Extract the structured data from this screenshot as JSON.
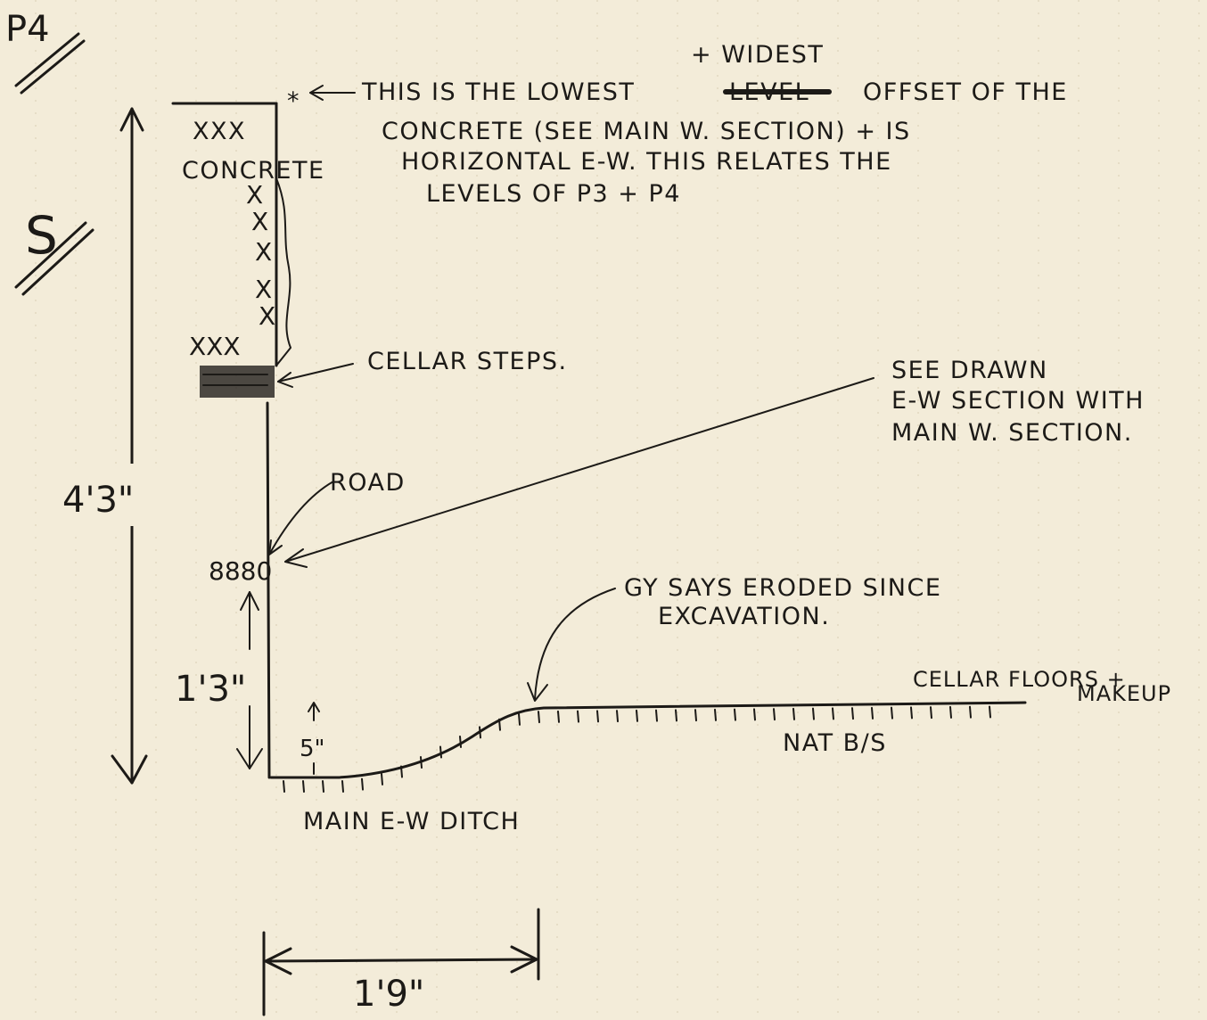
{
  "page_label": "P4",
  "direction_label": "S",
  "note_top": {
    "insert": "+ WIDEST",
    "line1": "THIS IS THE LOWEST",
    "struck": "LEVEL",
    "line1b": "OFFSET OF THE",
    "line2": "CONCRETE (SEE MAIN W. SECTION) + IS",
    "line3": "HORIZONTAL E-W. THIS RELATES THE",
    "line4": "LEVELS OF P3 + P4"
  },
  "concrete_label": "CONCRETE",
  "cellar_steps_label": "CELLAR STEPS.",
  "see_drawn": {
    "line1": "SEE DRAWN",
    "line2": "E-W SECTION WITH",
    "line3": "MAIN W. SECTION."
  },
  "road_label": "ROAD",
  "road_mark": "8880",
  "eroded_note": {
    "line1": "GY SAYS ERODED SINCE",
    "line2": "EXCAVATION."
  },
  "cellar_floors": {
    "line1": "CELLAR FLOORS +",
    "line2": "MAKEUP"
  },
  "nat_bs_label": "NAT B/S",
  "ditch_label": "MAIN E-W DITCH",
  "measurements": {
    "total_height": "4'3\"",
    "ditch_depth": "1'3\"",
    "small_step": "5\"",
    "width": "1'9\""
  }
}
